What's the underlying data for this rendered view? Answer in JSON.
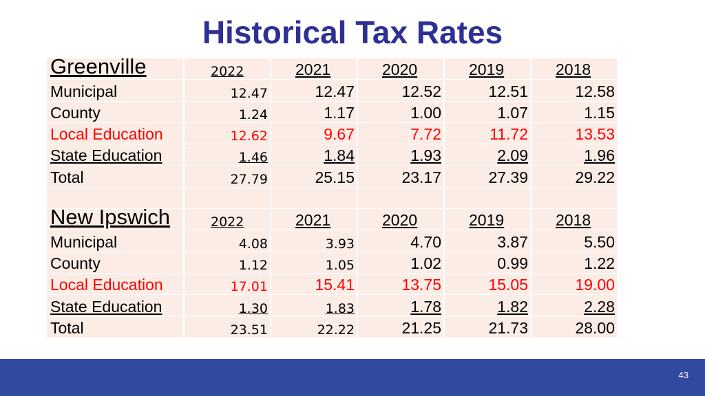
{
  "title": "Historical Tax Rates",
  "page_number": "43",
  "colors": {
    "title": "#2e3192",
    "footer": "#2f4a9e",
    "local_education": "#ff0000",
    "cell_bg": "#fcece6"
  },
  "greenville": {
    "name": "Greenville",
    "years": [
      "2022",
      "2021",
      "2020",
      "2019",
      "2018"
    ],
    "rows": [
      {
        "label": "Municipal",
        "values": [
          "12.47",
          "12.47",
          "12.52",
          "12.51",
          "12.58"
        ]
      },
      {
        "label": "County",
        "values": [
          "1.24",
          "1.17",
          "1.00",
          "1.07",
          "1.15"
        ]
      },
      {
        "label": "Local Education",
        "values": [
          "12.62",
          "9.67",
          "7.72",
          "11.72",
          "13.53"
        ]
      },
      {
        "label": "State Education",
        "values": [
          "1.46",
          "1.84",
          "1.93",
          "2.09",
          "1.96"
        ]
      },
      {
        "label": "Total",
        "values": [
          "27.79",
          "25.15",
          "23.17",
          "27.39",
          "29.22"
        ]
      }
    ]
  },
  "new_ipswich": {
    "name": "New Ipswich",
    "years": [
      "2022",
      "2021",
      "2020",
      "2019",
      "2018"
    ],
    "rows": [
      {
        "label": "Municipal",
        "values": [
          "4.08",
          "3.93",
          "4.70",
          "3.87",
          "5.50"
        ]
      },
      {
        "label": "County",
        "values": [
          "1.12",
          "1.05",
          "1.02",
          "0.99",
          "1.22"
        ]
      },
      {
        "label": "Local Education",
        "values": [
          "17.01",
          "15.41",
          "13.75",
          "15.05",
          "19.00"
        ]
      },
      {
        "label": "State Education",
        "values": [
          "1.30",
          "1.83",
          "1.78",
          "1.82",
          "2.28"
        ]
      },
      {
        "label": "Total",
        "values": [
          "23.51",
          "22.22",
          "21.25",
          "21.73",
          "28.00"
        ]
      }
    ]
  }
}
